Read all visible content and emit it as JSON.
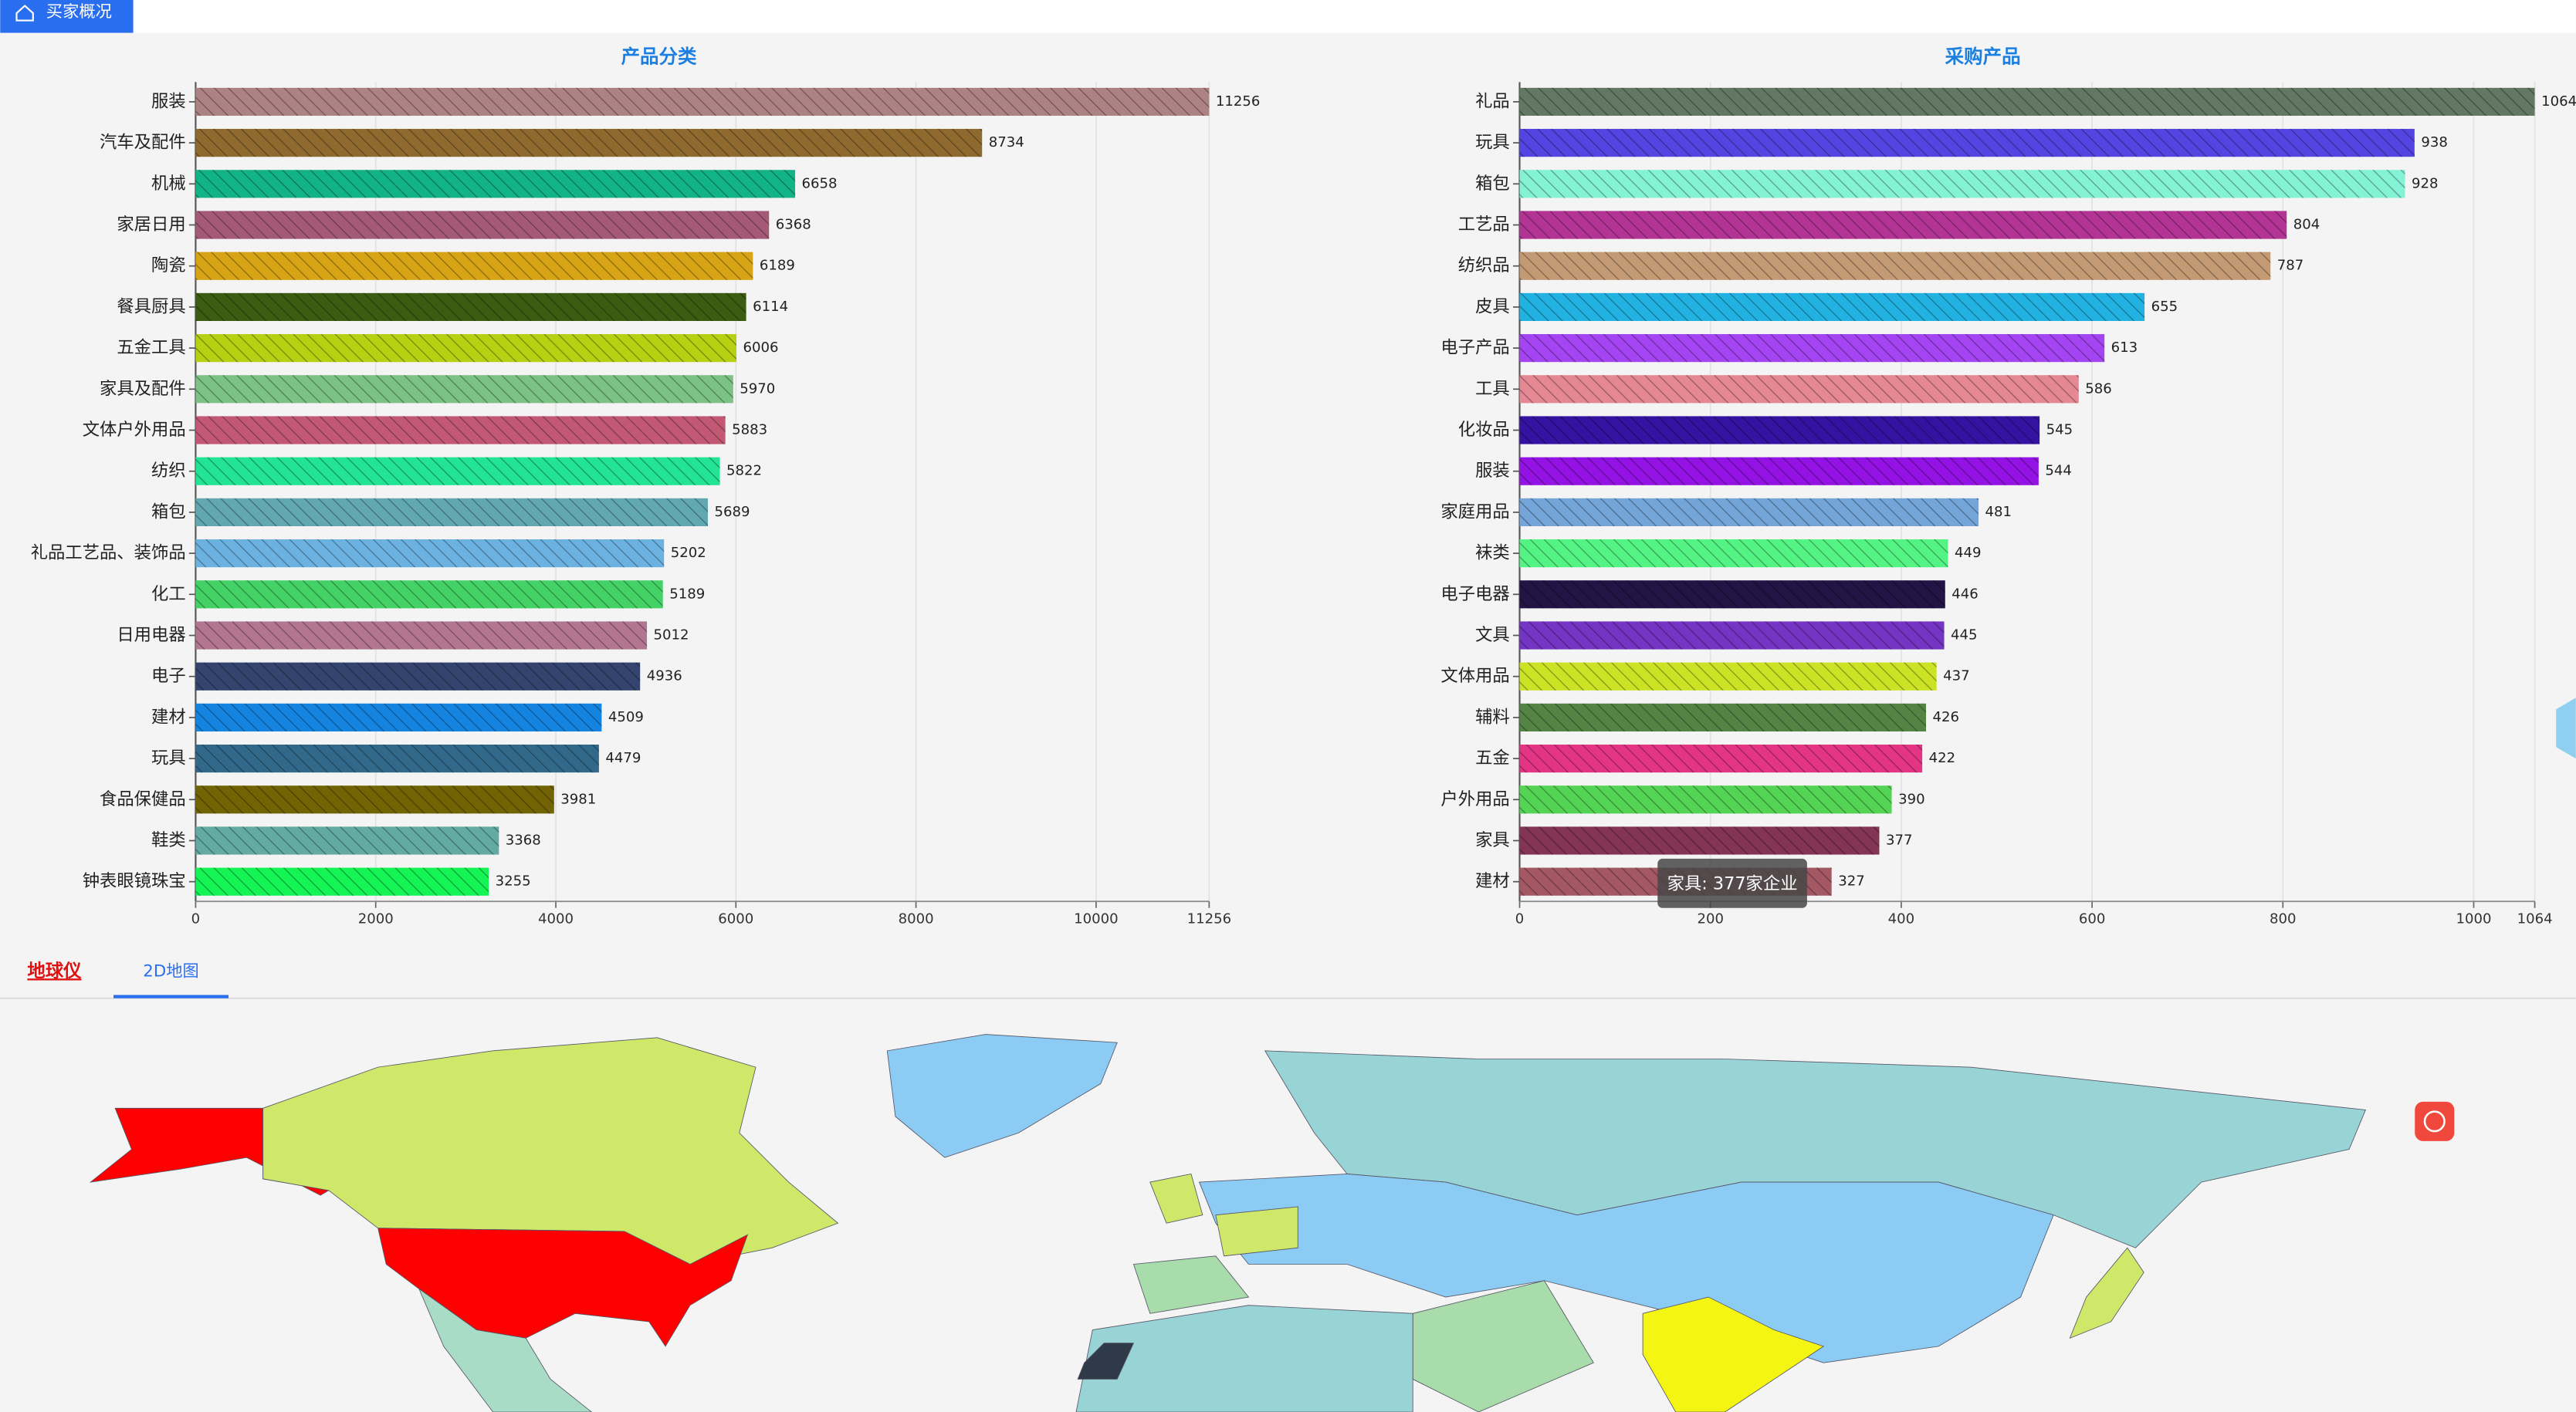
{
  "header": {
    "tab": "买家概况"
  },
  "chart_data": [
    {
      "type": "bar",
      "orientation": "horizontal",
      "title": "产品分类",
      "categories": [
        "服装",
        "汽车及配件",
        "机械",
        "家居日用",
        "陶瓷",
        "餐具厨具",
        "五金工具",
        "家具及配件",
        "文体户外用品",
        "纺织",
        "箱包",
        "礼品工艺品、装饰品",
        "化工",
        "日用电器",
        "电子",
        "建材",
        "玩具",
        "食品保健品",
        "鞋类",
        "钟表眼镜珠宝"
      ],
      "values": [
        11256,
        8734,
        6658,
        6368,
        6189,
        6114,
        6006,
        5970,
        5883,
        5822,
        5689,
        5202,
        5189,
        5012,
        4936,
        4509,
        4479,
        3981,
        3368,
        3255
      ],
      "colors": [
        "#ad8282",
        "#8e6a2e",
        "#12b386",
        "#a45a76",
        "#d6a414",
        "#3c5c12",
        "#b6d012",
        "#7cc284",
        "#c25874",
        "#22e494",
        "#62a8b2",
        "#6cb2e0",
        "#44d266",
        "#b27690",
        "#34446e",
        "#1484e0",
        "#32698a",
        "#726404",
        "#62aaa2",
        "#14f454"
      ],
      "xlim": [
        0,
        11256
      ],
      "xticks": [
        0,
        2000,
        4000,
        6000,
        8000,
        10000,
        11256
      ],
      "grid": true
    },
    {
      "type": "bar",
      "orientation": "horizontal",
      "title": "采购产品",
      "categories": [
        "礼品",
        "玩具",
        "箱包",
        "工艺品",
        "纺织品",
        "皮具",
        "电子产品",
        "工具",
        "化妆品",
        "服装",
        "家庭用品",
        "袜类",
        "电子电器",
        "文具",
        "文体用品",
        "辅料",
        "五金",
        "户外用品",
        "家具",
        "建材"
      ],
      "values": [
        1064,
        938,
        928,
        804,
        787,
        655,
        613,
        586,
        545,
        544,
        481,
        449,
        446,
        445,
        437,
        426,
        422,
        390,
        377,
        327
      ],
      "colors": [
        "#627862",
        "#5444e2",
        "#84f2d4",
        "#b23494",
        "#c49a74",
        "#22b2e2",
        "#a444f2",
        "#e48894",
        "#3412a2",
        "#9412e4",
        "#74a4d8",
        "#54f484",
        "#221444",
        "#7434c4",
        "#cce224",
        "#548444",
        "#e43484",
        "#54d454",
        "#843454",
        "#a45864"
      ],
      "xlim": [
        0,
        1064
      ],
      "xticks": [
        0,
        200,
        400,
        600,
        800,
        1000,
        1064
      ],
      "grid": true
    }
  ],
  "tooltip": "家具: 377家企业",
  "map_tabs": [
    "地球仪",
    "2D地图"
  ]
}
